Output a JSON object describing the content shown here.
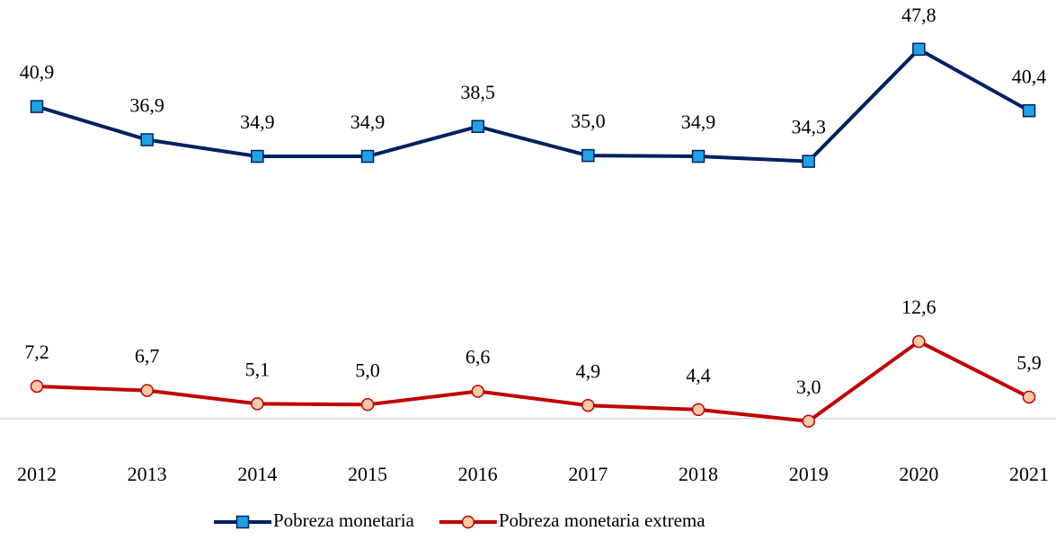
{
  "chart_data": {
    "type": "line",
    "categories": [
      "2012",
      "2013",
      "2014",
      "2015",
      "2016",
      "2017",
      "2018",
      "2019",
      "2020",
      "2021"
    ],
    "series": [
      {
        "name": "Pobreza monetaria",
        "color": "#002060",
        "marker": "square",
        "marker_color": "#1fa3e6",
        "values": [
          40.9,
          36.9,
          34.9,
          34.9,
          38.5,
          35.0,
          34.9,
          34.3,
          47.8,
          40.4
        ],
        "value_labels": [
          "40,9",
          "36,9",
          "34,9",
          "34,9",
          "38,5",
          "35,0",
          "34,9",
          "34,3",
          "47,8",
          "40,4"
        ]
      },
      {
        "name": "Pobreza monetaria extrema",
        "color": "#c00000",
        "marker": "circle",
        "marker_color": "#f9c9a7",
        "values": [
          7.2,
          6.7,
          5.1,
          5.0,
          6.6,
          4.9,
          4.4,
          3.0,
          12.6,
          5.9
        ],
        "value_labels": [
          "7,2",
          "6,7",
          "5,1",
          "5,0",
          "6,6",
          "4,9",
          "4,4",
          "3,0",
          "12,6",
          "5,9"
        ]
      }
    ],
    "ylim": [
      0,
      50
    ],
    "grid": false,
    "legend": "bottom"
  }
}
